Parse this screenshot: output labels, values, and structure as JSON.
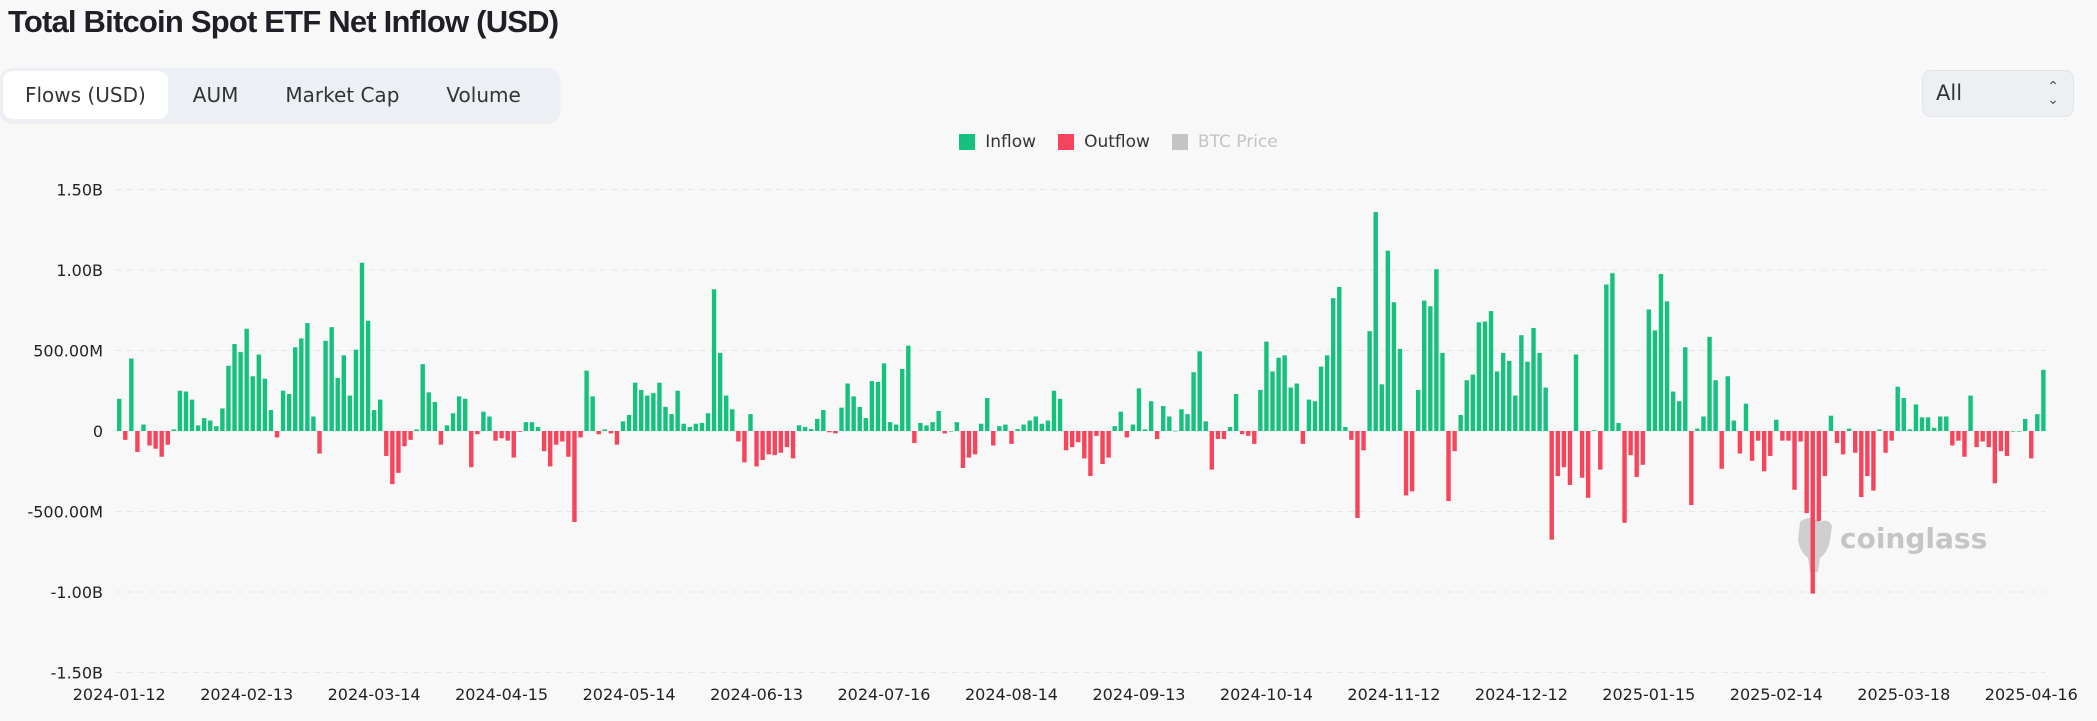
{
  "title": "Total Bitcoin Spot ETF Net Inflow (USD)",
  "tabs": [
    {
      "label": "Flows (USD)",
      "active": true
    },
    {
      "label": "AUM",
      "active": false
    },
    {
      "label": "Market Cap",
      "active": false
    },
    {
      "label": "Volume",
      "active": false
    }
  ],
  "range_select": {
    "value": "All",
    "icon": "chevron-up-down-icon"
  },
  "watermark": "coinglass",
  "colors": {
    "inflow": "#16c07d",
    "outflow": "#f5455c",
    "btc_price_disabled": "#c4c4c4"
  },
  "chart_data": {
    "type": "bar",
    "title": "Total Bitcoin Spot ETF Net Inflow (USD)",
    "legend": [
      {
        "name": "Inflow",
        "color": "#16c07d",
        "enabled": true
      },
      {
        "name": "Outflow",
        "color": "#f5455c",
        "enabled": true
      },
      {
        "name": "BTC Price",
        "color": "#c4c4c4",
        "enabled": false
      }
    ],
    "legend_position": "top-center",
    "unit": "USD millions",
    "ylim": [
      -1500,
      1500
    ],
    "y_ticks": [
      1500,
      1000,
      500,
      0,
      -500,
      -1000,
      -1500
    ],
    "y_tick_labels": [
      "1.50B",
      "1.00B",
      "500.00M",
      "0",
      "-500.00M",
      "-1.00B",
      "-1.50B"
    ],
    "grid": true,
    "x_tick_labels": [
      "2024-01-12",
      "2024-02-13",
      "2024-03-14",
      "2024-04-15",
      "2024-05-14",
      "2024-06-13",
      "2024-07-16",
      "2024-08-14",
      "2024-09-13",
      "2024-10-14",
      "2024-11-12",
      "2024-12-12",
      "2025-01-15",
      "2025-02-14",
      "2025-03-18",
      "2025-04-16"
    ],
    "x_range": [
      "2024-01-11",
      "2025-04-16"
    ],
    "values": [
      200,
      -55,
      450,
      -130,
      40,
      -90,
      -110,
      -160,
      -85,
      10,
      250,
      245,
      195,
      35,
      80,
      65,
      30,
      140,
      405,
      540,
      490,
      635,
      340,
      475,
      325,
      130,
      -40,
      250,
      230,
      520,
      575,
      670,
      90,
      -140,
      560,
      645,
      330,
      470,
      220,
      505,
      1045,
      685,
      130,
      195,
      -155,
      -330,
      -260,
      -95,
      -55,
      10,
      415,
      240,
      180,
      -85,
      35,
      110,
      215,
      200,
      -225,
      -20,
      120,
      90,
      -60,
      -45,
      -60,
      -165,
      -5,
      55,
      55,
      25,
      -125,
      -220,
      -85,
      -65,
      -160,
      -565,
      -40,
      375,
      215,
      -20,
      10,
      -15,
      -85,
      60,
      100,
      300,
      255,
      220,
      235,
      300,
      150,
      105,
      250,
      45,
      25,
      45,
      50,
      110,
      880,
      485,
      220,
      135,
      -65,
      -195,
      105,
      -220,
      -180,
      -145,
      -150,
      -135,
      -100,
      -170,
      35,
      25,
      12,
      75,
      130,
      -8,
      -15,
      145,
      295,
      215,
      150,
      80,
      310,
      305,
      420,
      55,
      40,
      385,
      530,
      -75,
      50,
      35,
      55,
      125,
      -15,
      0,
      55,
      -230,
      -165,
      -145,
      45,
      205,
      -90,
      30,
      40,
      -80,
      12,
      40,
      65,
      90,
      45,
      65,
      250,
      200,
      -120,
      -100,
      -70,
      -170,
      -280,
      -30,
      -205,
      -165,
      30,
      120,
      -40,
      40,
      265,
      10,
      185,
      -50,
      155,
      90,
      2,
      135,
      105,
      365,
      495,
      60,
      -240,
      -50,
      -50,
      25,
      230,
      -20,
      -30,
      -80,
      255,
      555,
      370,
      455,
      470,
      270,
      295,
      -80,
      195,
      185,
      400,
      470,
      825,
      895,
      25,
      -55,
      -540,
      -120,
      620,
      1360,
      290,
      1120,
      800,
      510,
      -400,
      -375,
      255,
      810,
      775,
      1005,
      485,
      -435,
      -125,
      100,
      315,
      350,
      675,
      680,
      745,
      370,
      485,
      435,
      220,
      595,
      430,
      640,
      485,
      270,
      -675,
      -280,
      -225,
      -335,
      475,
      -290,
      -415,
      5,
      -240,
      910,
      980,
      50,
      -570,
      -150,
      -285,
      -210,
      755,
      625,
      975,
      805,
      245,
      185,
      520,
      -460,
      15,
      90,
      585,
      315,
      -235,
      340,
      65,
      -140,
      170,
      -185,
      -60,
      -250,
      -155,
      70,
      -60,
      -60,
      -365,
      -65,
      -510,
      -1010,
      -560,
      -280,
      95,
      -75,
      -145,
      15,
      -135,
      -410,
      -280,
      -370,
      10,
      -135,
      -60,
      275,
      205,
      10,
      165,
      85,
      85,
      20,
      90,
      90,
      -90,
      -60,
      -160,
      220,
      -100,
      -65,
      -100,
      -325,
      -125,
      -155,
      0,
      0,
      75,
      -170,
      105,
      380
    ]
  }
}
